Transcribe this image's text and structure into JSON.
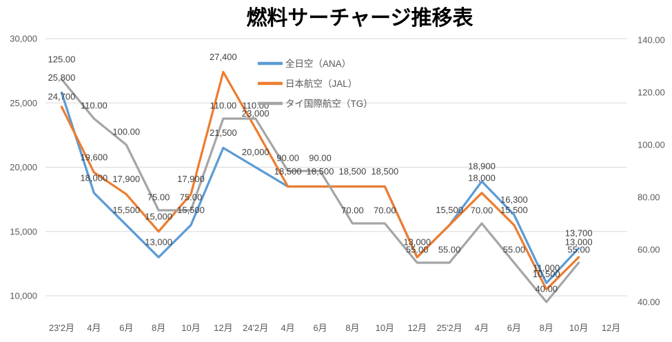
{
  "chart_data": {
    "type": "line",
    "title": "燃料サーチャージ推移表",
    "categories": [
      "23'2月",
      "4月",
      "6月",
      "8月",
      "10月",
      "12月",
      "24'2月",
      "4月",
      "6月",
      "8月",
      "10月",
      "12月",
      "25'2月",
      "4月",
      "6月",
      "8月",
      "10月",
      "12月"
    ],
    "series": [
      {
        "name": "全日空（ANA）",
        "key": "ana",
        "color": "#5b9bd5",
        "axis": "left",
        "values": [
          25800,
          18000,
          15500,
          13000,
          15500,
          21500,
          20000,
          18500,
          18500,
          18500,
          18500,
          13000,
          15500,
          18900,
          16300,
          11000,
          13700,
          null
        ],
        "labels": [
          "25,800",
          "18,000",
          "15,500",
          "13,000",
          "15,500",
          "21,500",
          "20,000",
          "18,500",
          "18,500",
          "18,500",
          "18,500",
          "13,000",
          "15,500",
          "18,900",
          "16,300",
          "11,000",
          "13,700",
          null
        ]
      },
      {
        "name": "日本航空（JAL）",
        "key": "jal",
        "color": "#ed7d31",
        "axis": "left",
        "values": [
          24700,
          19600,
          17900,
          15000,
          17900,
          27400,
          23000,
          18500,
          18500,
          18500,
          18500,
          13000,
          15500,
          18000,
          15500,
          10500,
          13000,
          null
        ],
        "labels": [
          "24,700",
          "19,600",
          "17,900",
          "15,000",
          "17,900",
          "27,400",
          "23,000",
          null,
          null,
          null,
          null,
          null,
          null,
          "18,000",
          "15,500",
          "10,500",
          "13,000",
          null
        ]
      },
      {
        "name": "タイ国際航空（TG）",
        "key": "tg",
        "color": "#a5a5a5",
        "axis": "right",
        "values": [
          125,
          110,
          100,
          75,
          75,
          110,
          110,
          90,
          90,
          70,
          70,
          55,
          55,
          70,
          55,
          40,
          55,
          null
        ],
        "labels": [
          "125.00",
          "110.00",
          "100.00",
          "75.00",
          "75.00",
          "110.00",
          "110.00",
          "90.00",
          "90.00",
          "70.00",
          "70.00",
          "55.00",
          "55.00",
          "70.00",
          "55.00",
          "40.00",
          "55.00",
          null
        ]
      }
    ],
    "left_axis": {
      "min": 10000,
      "max": 30000,
      "step": 5000,
      "ticks": [
        {
          "value": 30000,
          "label": "30,000"
        },
        {
          "value": 25000,
          "label": "25,000"
        },
        {
          "value": 20000,
          "label": "20,000"
        },
        {
          "value": 15000,
          "label": "15,000"
        },
        {
          "value": 10000,
          "label": "10,000"
        }
      ]
    },
    "right_axis": {
      "min": 40,
      "max": 140,
      "step": 20,
      "ticks": [
        {
          "value": 140,
          "label": "140.00"
        },
        {
          "value": 120,
          "label": "120.00"
        },
        {
          "value": 100,
          "label": "100.00"
        },
        {
          "value": 80,
          "label": "80.00"
        },
        {
          "value": 60,
          "label": "60.00"
        },
        {
          "value": 40,
          "label": "40.00"
        }
      ]
    },
    "legend": [
      {
        "key": "ana",
        "label": "全日空（ANA）",
        "color": "#5b9bd5"
      },
      {
        "key": "jal",
        "label": "日本航空（JAL）",
        "color": "#ed7d31"
      },
      {
        "key": "tg",
        "label": "タイ国際航空（TG）",
        "color": "#a5a5a5"
      }
    ],
    "grid": true,
    "legend_position": "inside-top-center",
    "colors": {
      "grid": "#d9d9d9",
      "axis_text": "#595959",
      "data_label_text": "#404040",
      "title_text": "#000000",
      "background": "#ffffff"
    }
  }
}
